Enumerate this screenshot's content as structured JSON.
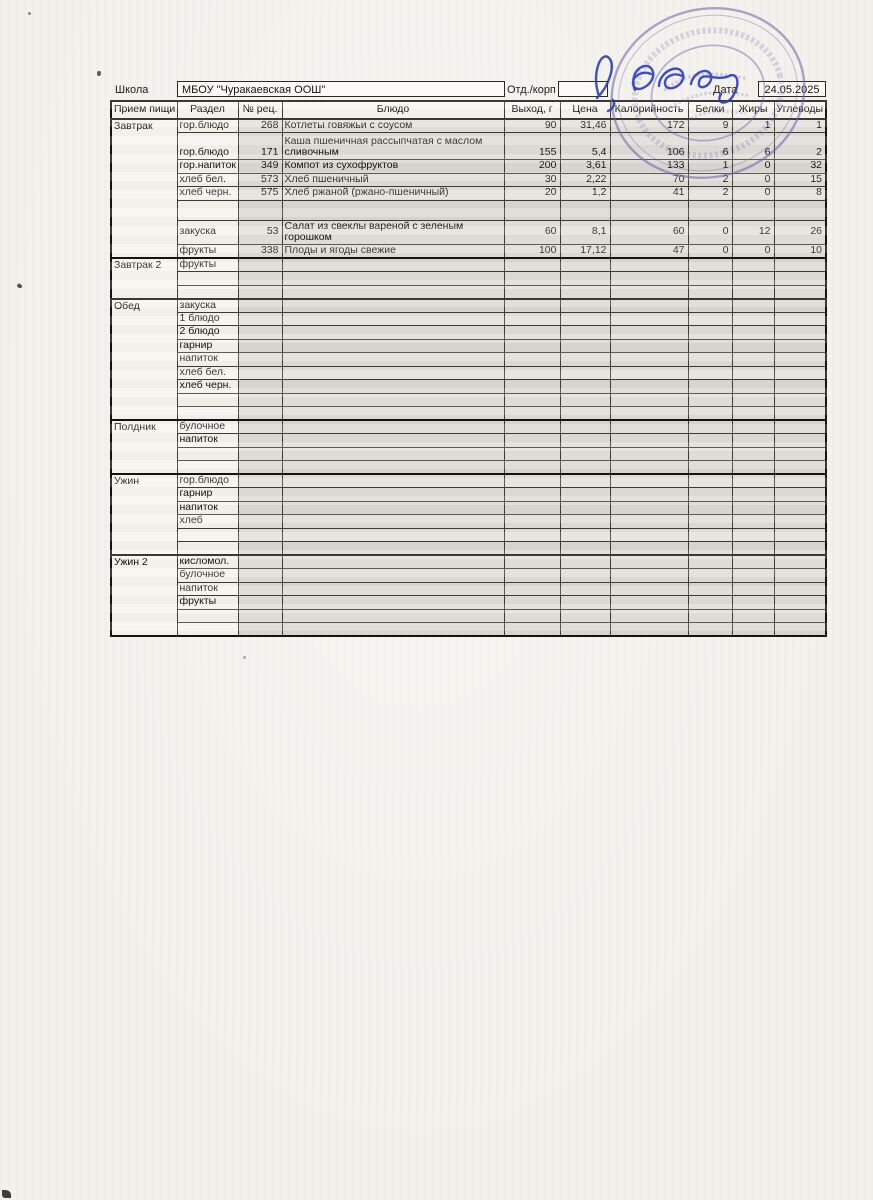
{
  "page": {
    "school_label": "Школа",
    "school_value": "МБОУ \"Чуракаевская ООШ\"",
    "dept_label": "Отд./корп",
    "dept_value": "",
    "date_label": "Дата",
    "date_value": "24.05.2025"
  },
  "stamp_color": "#6e5fa8",
  "signature_color": "#2c3dc0",
  "table": {
    "headers": [
      "Прием пищи",
      "Раздел",
      "№ рец.",
      "Блюдо",
      "Выход, г",
      "Цена",
      "Калорийность",
      "Белки",
      "Жиры",
      "Углеводы"
    ],
    "sections": [
      {
        "meal": "Завтрак",
        "rows": [
          {
            "razdel": "гор.блюдо",
            "rec": "268",
            "dish": "Котлеты говяжьи с соусом",
            "out": "90",
            "price": "31,46",
            "cal": "172",
            "prot": "9",
            "fat": "1",
            "carb": "1"
          },
          {
            "razdel": "гор.блюдо",
            "rec": "171",
            "dish": "Каша пшеничная рассыпчатая с маслом сливочным",
            "out": "155",
            "price": "5,4",
            "cal": "106",
            "prot": "6",
            "fat": "6",
            "carb": "2",
            "tall": true
          },
          {
            "razdel": "гор.напиток",
            "rec": "349",
            "dish": "Компот из сухофруктов",
            "out": "200",
            "price": "3,61",
            "cal": "133",
            "prot": "1",
            "fat": "0",
            "carb": "32"
          },
          {
            "razdel": "хлеб бел.",
            "rec": "573",
            "dish": "Хлеб пшеничный",
            "out": "30",
            "price": "2,22",
            "cal": "70",
            "prot": "2",
            "fat": "0",
            "carb": "15"
          },
          {
            "razdel": "хлеб черн.",
            "rec": "575",
            "dish": "Хлеб ржаной (ржано-пшеничный)",
            "out": "20",
            "price": "1,2",
            "cal": "41",
            "prot": "2",
            "fat": "0",
            "carb": "8"
          },
          {
            "spacer": true
          },
          {
            "razdel": "закуска",
            "rec": "53",
            "dish": "Салат из свеклы вареной с зеленым горошком",
            "out": "60",
            "price": "8,1",
            "cal": "60",
            "prot": "0",
            "fat": "12",
            "carb": "26"
          },
          {
            "razdel": "фрукты",
            "rec": "338",
            "dish": "Плоды и ягоды свежие",
            "out": "100",
            "price": "17,12",
            "cal": "47",
            "prot": "0",
            "fat": "0",
            "carb": "10"
          }
        ]
      },
      {
        "meal": "Завтрак 2",
        "rows": [
          {
            "razdel": "фрукты"
          },
          {},
          {}
        ]
      },
      {
        "meal": "Обед",
        "rows": [
          {
            "razdel": "закуска"
          },
          {
            "razdel": "1 блюдо"
          },
          {
            "razdel": "2 блюдо"
          },
          {
            "razdel": "гарнир"
          },
          {
            "razdel": "напиток"
          },
          {
            "razdel": "хлеб бел."
          },
          {
            "razdel": "хлеб черн."
          },
          {},
          {}
        ]
      },
      {
        "meal": "Полдник",
        "rows": [
          {
            "razdel": "булочное"
          },
          {
            "razdel": "напиток"
          },
          {},
          {}
        ]
      },
      {
        "meal": "Ужин",
        "rows": [
          {
            "razdel": "гор.блюдо"
          },
          {
            "razdel": "гарнир"
          },
          {
            "razdel": "напиток"
          },
          {
            "razdel": "хлеб"
          },
          {},
          {}
        ]
      },
      {
        "meal": "Ужин 2",
        "rows": [
          {
            "razdel": "кисломол."
          },
          {
            "razdel": "булочное"
          },
          {
            "razdel": "напиток"
          },
          {
            "razdel": "фрукты"
          },
          {},
          {}
        ]
      }
    ]
  }
}
